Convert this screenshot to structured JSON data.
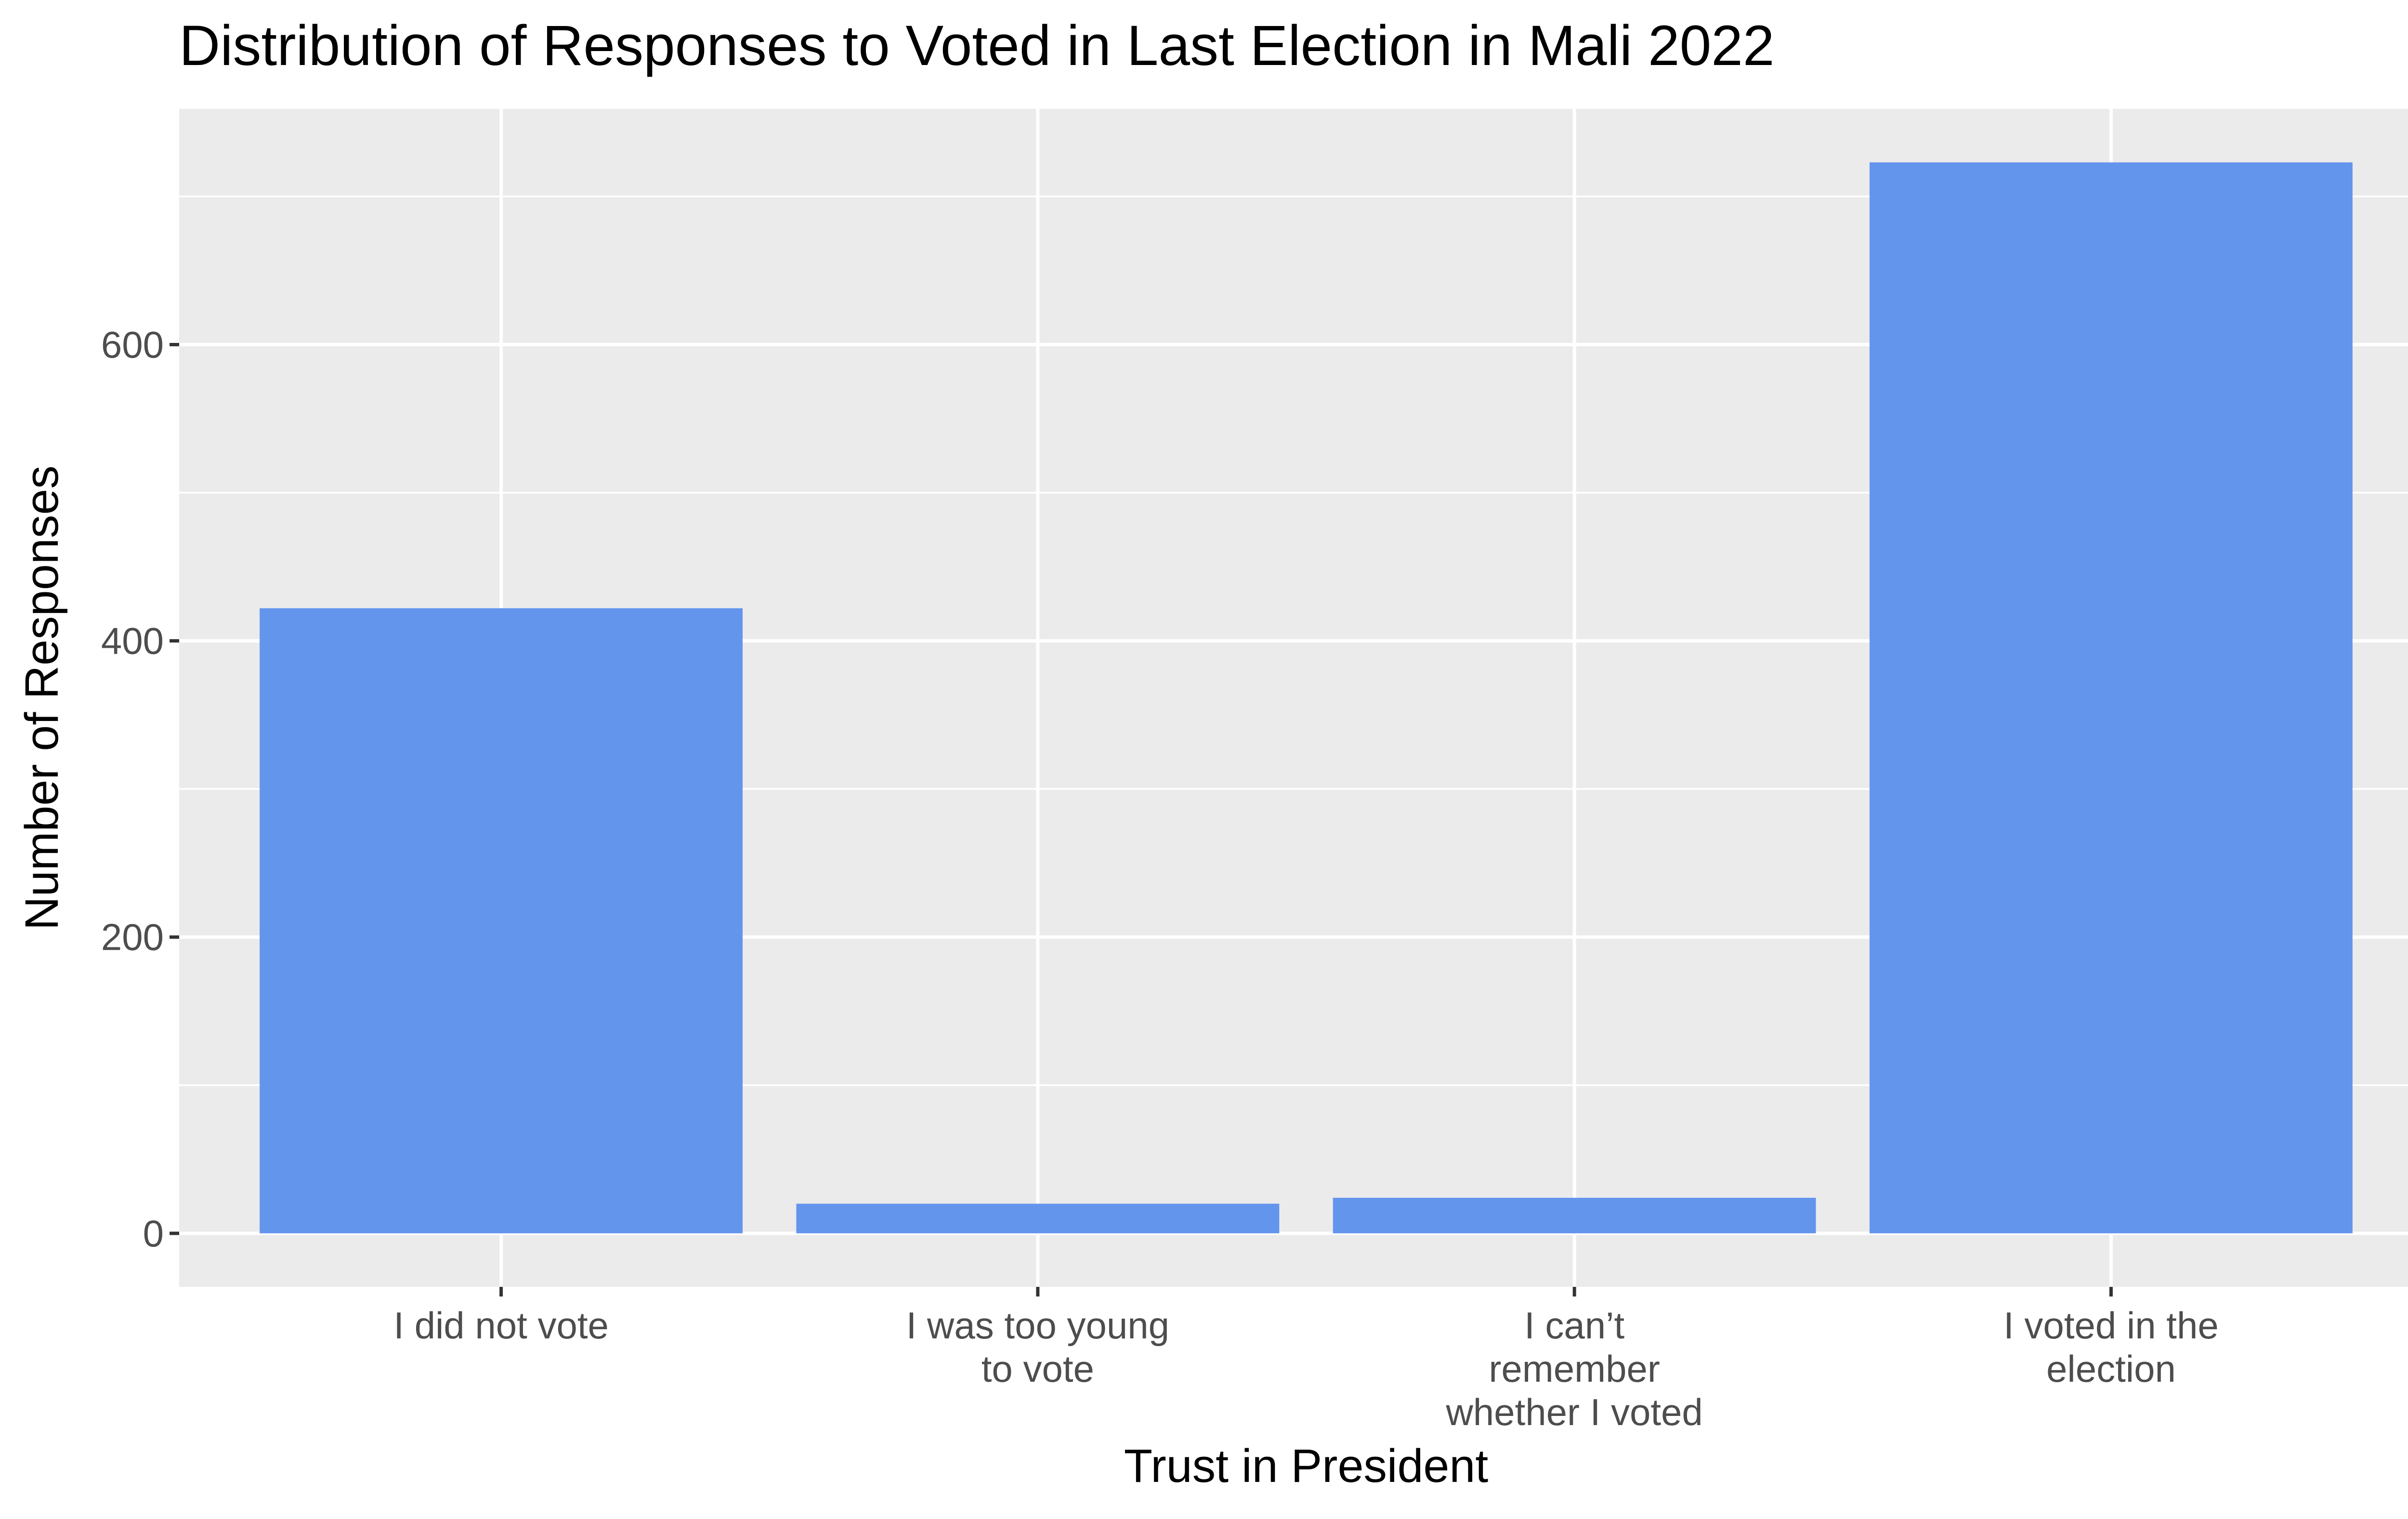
{
  "chart_data": {
    "type": "bar",
    "title": "Distribution of Responses to Voted in Last Election in Mali 2022",
    "xlabel": "Trust in President",
    "ylabel": "Number of Responses",
    "categories": [
      [
        "I did not vote"
      ],
      [
        "I was too young",
        "to vote"
      ],
      [
        "I can’t",
        "remember",
        "whether I voted"
      ],
      [
        "I voted in the",
        "election"
      ]
    ],
    "values": [
      422,
      20,
      24,
      723
    ],
    "y_ticks": [
      0,
      200,
      400,
      600
    ],
    "y_tick_labels": [
      "0",
      "200",
      "400",
      "600"
    ],
    "ylim": [
      -36.15,
      759.15
    ],
    "grid": true,
    "bar_color": "#6495ED",
    "panel_color": "#EBEBEB"
  }
}
